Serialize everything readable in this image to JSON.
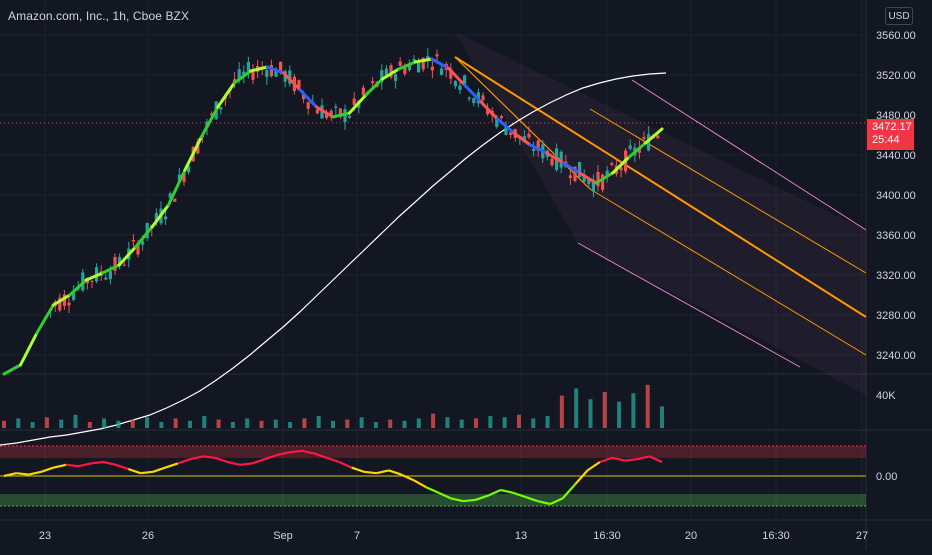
{
  "header": {
    "title": "Amazon.com, Inc., 1h, Cboe BZX",
    "currency": "USD"
  },
  "last_price": {
    "price": "3472.17",
    "countdown": "25:44",
    "color": "#f23645"
  },
  "colors": {
    "background": "#131722",
    "up": "#26a69a",
    "down": "#ef5350",
    "moving_average": "#ffffff",
    "pitchfork_median": "#ff9800",
    "pitchfork_outer": "#e87fd0",
    "osc_zero_line": "#d9c21a"
  },
  "chart_data": [
    {
      "type": "candlestick",
      "symbol": "Amazon.com, Inc.",
      "interval": "1h",
      "y_axis": {
        "ticks": [
          "3560.00",
          "3520.00",
          "3480.00",
          "3440.00",
          "3400.00",
          "3360.00",
          "3320.00",
          "3280.00",
          "3240.00"
        ],
        "range": [
          3215,
          3575
        ]
      },
      "x_axis": {
        "ticks": [
          "23",
          "26",
          "Sep",
          "7",
          "13",
          "16:30",
          "20",
          "16:30",
          "27"
        ]
      },
      "trend_line": [
        3210,
        3230,
        3262,
        3290,
        3300,
        3315,
        3322,
        3330,
        3348,
        3368,
        3390,
        3425,
        3458,
        3488,
        3512,
        3524,
        3528,
        3522,
        3505,
        3488,
        3478,
        3482,
        3500,
        3516,
        3526,
        3533,
        3536,
        3527,
        3510,
        3493,
        3476,
        3462,
        3450,
        3442,
        3432,
        3422,
        3412,
        3422,
        3438,
        3452,
        3466
      ],
      "moving_average": [
        3150,
        3152,
        3155,
        3158,
        3160,
        3163,
        3166,
        3170,
        3175,
        3180,
        3187,
        3195,
        3204,
        3215,
        3227,
        3240,
        3254,
        3268,
        3283,
        3299,
        3315,
        3331,
        3347,
        3363,
        3379,
        3394,
        3409,
        3423,
        3437,
        3450,
        3462,
        3473,
        3483,
        3492,
        3500,
        3507,
        3512,
        3516,
        3519,
        3521,
        3522
      ],
      "pitchfork": {
        "median_start": 3538,
        "median_end": 3278,
        "upper_end": 3365,
        "lower_end": 3200
      }
    },
    {
      "type": "bar",
      "name": "Volume",
      "y_axis": {
        "ticks": [
          "40K"
        ]
      },
      "values": [
        6,
        8,
        5,
        9,
        7,
        11,
        5,
        8,
        6,
        7,
        9,
        5,
        8,
        6,
        10,
        7,
        5,
        8,
        6,
        7,
        5,
        8,
        10,
        6,
        7,
        9,
        5,
        7,
        6,
        8,
        12,
        9,
        7,
        8,
        10,
        9,
        11,
        8,
        10,
        27,
        33,
        24,
        30,
        22,
        29,
        36,
        18
      ]
    },
    {
      "type": "line",
      "name": "Oscillator",
      "y_axis": {
        "ticks": [
          "0.00"
        ]
      },
      "values": [
        0,
        2,
        1,
        3,
        6,
        8,
        7,
        9,
        10,
        8,
        5,
        2,
        3,
        6,
        9,
        12,
        14,
        13,
        10,
        8,
        9,
        12,
        15,
        17,
        18,
        16,
        13,
        10,
        6,
        3,
        2,
        4,
        1,
        -3,
        -8,
        -12,
        -16,
        -18,
        -17,
        -14,
        -10,
        -12,
        -15,
        -18,
        -20,
        -16,
        -6,
        4,
        10,
        13,
        11,
        12,
        14,
        10
      ]
    }
  ]
}
